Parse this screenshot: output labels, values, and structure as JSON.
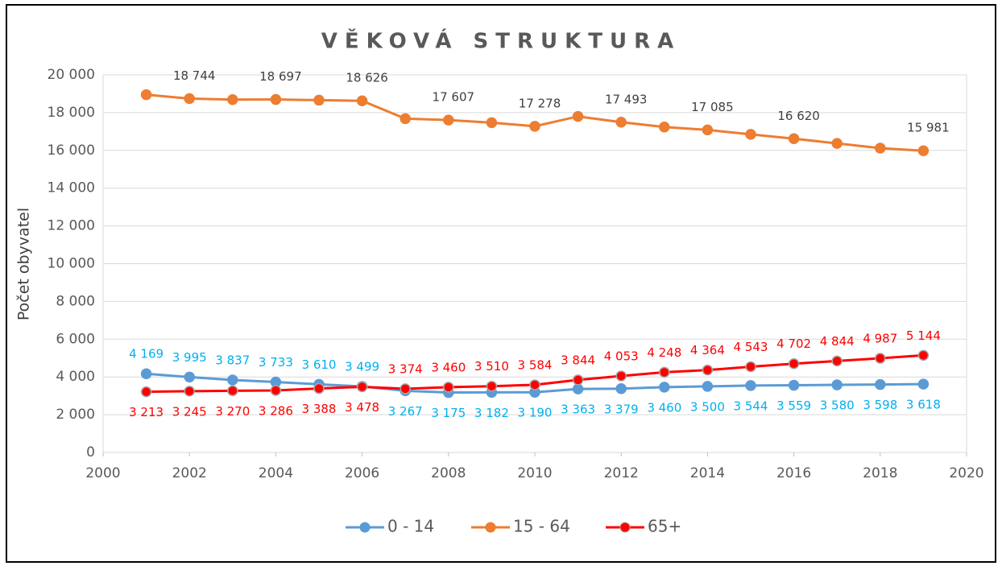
{
  "chart_data": {
    "type": "line",
    "title": "VĚKOVÁ STRUKTURA",
    "y_label": "Počet obyvatel",
    "x": [
      2001,
      2002,
      2003,
      2004,
      2005,
      2006,
      2007,
      2008,
      2009,
      2010,
      2011,
      2012,
      2013,
      2014,
      2015,
      2016,
      2017,
      2018,
      2019
    ],
    "xlim": [
      2000,
      2020
    ],
    "xticks": [
      2000,
      2002,
      2004,
      2006,
      2008,
      2010,
      2012,
      2014,
      2016,
      2018,
      2020
    ],
    "ylim": [
      0,
      20000
    ],
    "yticks": [
      0,
      {
        "value": 2000,
        "label": "2 000"
      },
      {
        "value": 4000,
        "label": "4 000"
      },
      {
        "value": 6000,
        "label": "6 000"
      },
      {
        "value": 8000,
        "label": "8 000"
      },
      {
        "value": 10000,
        "label": "10 000"
      },
      {
        "value": 12000,
        "label": "12 000"
      },
      {
        "value": 14000,
        "label": "14 000"
      },
      {
        "value": 16000,
        "label": "16 000"
      },
      {
        "value": 18000,
        "label": "18 000"
      },
      {
        "value": 20000,
        "label": "20 000"
      }
    ],
    "grid": true,
    "legend": "bottom",
    "series": [
      {
        "name": "0 - 14",
        "color": "#5b9bd5",
        "label_color": "#00b0f0",
        "values": [
          4169,
          3995,
          3837,
          3733,
          3610,
          3499,
          3267,
          3175,
          3182,
          3190,
          3363,
          3379,
          3460,
          3500,
          3544,
          3559,
          3580,
          3598,
          3618
        ],
        "value_labels": [
          "4 169",
          "3 995",
          "3 837",
          "3 733",
          "3 610",
          "3 499",
          "3 267",
          "3 175",
          "3 182",
          "3 190",
          "3 363",
          "3 379",
          "3 460",
          "3 500",
          "3 544",
          "3 559",
          "3 580",
          "3 598",
          "3 618"
        ]
      },
      {
        "name": "15 - 64",
        "color": "#ed7d31",
        "label_color": "#404040",
        "values": [
          18950,
          18744,
          18690,
          18697,
          18660,
          18626,
          17680,
          17607,
          17470,
          17278,
          17800,
          17493,
          17240,
          17085,
          16850,
          16620,
          16370,
          16120,
          15981
        ],
        "value_labels": [
          null,
          "18 744",
          null,
          "18 697",
          null,
          "18 626",
          null,
          "17 607",
          null,
          "17 278",
          null,
          "17 493",
          null,
          "17 085",
          null,
          "16 620",
          null,
          null,
          "15 981"
        ]
      },
      {
        "name": "65+",
        "color": "#ff0000",
        "label_color": "#ff0000",
        "values": [
          3213,
          3245,
          3270,
          3286,
          3388,
          3478,
          3374,
          3460,
          3510,
          3584,
          3844,
          4053,
          4248,
          4364,
          4543,
          4702,
          4844,
          4987,
          5144
        ],
        "value_labels": [
          "3 213",
          "3 245",
          "3 270",
          "3 286",
          "3 388",
          "3 478",
          "3 374",
          "3 460",
          "3 510",
          "3 584",
          "3 844",
          "4 053",
          "4 248",
          "4 364",
          "4 543",
          "4 702",
          "4 844",
          "4 987",
          "5 144"
        ]
      }
    ]
  }
}
